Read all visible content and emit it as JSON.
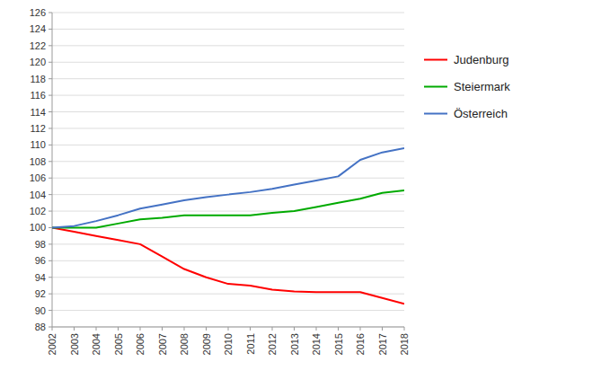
{
  "chart_data": {
    "type": "line",
    "x": [
      2002,
      2003,
      2004,
      2005,
      2006,
      2007,
      2008,
      2009,
      2010,
      2011,
      2012,
      2013,
      2014,
      2015,
      2016,
      2017,
      2018
    ],
    "series": [
      {
        "name": "Judenburg",
        "color": "#ff0000",
        "values": [
          100.0,
          99.5,
          99.0,
          98.5,
          98.0,
          96.5,
          95.0,
          94.0,
          93.2,
          93.0,
          92.5,
          92.3,
          92.2,
          92.2,
          92.2,
          91.5,
          90.8
        ]
      },
      {
        "name": "Steiermark",
        "color": "#00aa00",
        "values": [
          100.0,
          100.0,
          100.0,
          100.5,
          101.0,
          101.2,
          101.5,
          101.5,
          101.5,
          101.5,
          101.8,
          102.0,
          102.5,
          103.0,
          103.5,
          104.2,
          104.5
        ]
      },
      {
        "name": "Österreich",
        "color": "#4472c4",
        "values": [
          100.0,
          100.2,
          100.8,
          101.5,
          102.3,
          102.8,
          103.3,
          103.7,
          104.0,
          104.3,
          104.7,
          105.2,
          105.7,
          106.2,
          108.2,
          109.1,
          109.6
        ]
      }
    ],
    "xlim": [
      2002,
      2018
    ],
    "xticks": [
      2002,
      2003,
      2004,
      2005,
      2006,
      2007,
      2008,
      2009,
      2010,
      2011,
      2012,
      2013,
      2014,
      2015,
      2016,
      2017,
      2018
    ],
    "ylim": [
      88,
      126
    ],
    "yticks": [
      88,
      90,
      92,
      94,
      96,
      98,
      100,
      102,
      104,
      106,
      108,
      110,
      112,
      114,
      116,
      118,
      120,
      122,
      124,
      126
    ],
    "grid": true,
    "legend": "right"
  }
}
